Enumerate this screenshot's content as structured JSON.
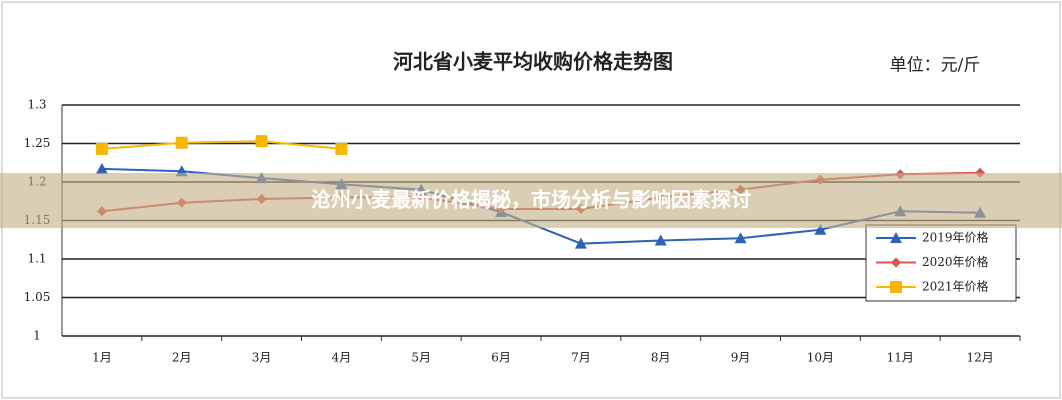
{
  "chart_data": {
    "type": "line",
    "title": "河北省小麦平均收购价格走势图",
    "unit": "单位：元/斤",
    "categories": [
      "1月",
      "2月",
      "3月",
      "4月",
      "5月",
      "6月",
      "7月",
      "8月",
      "9月",
      "10月",
      "11月",
      "12月"
    ],
    "series": [
      {
        "name": "2019年价格",
        "color": "#2e62b8",
        "marker": "triangle",
        "values": [
          1.217,
          1.214,
          1.205,
          1.197,
          1.19,
          1.161,
          1.12,
          1.124,
          1.127,
          1.138,
          1.162,
          1.16
        ]
      },
      {
        "name": "2020年价格",
        "color": "#d9534f",
        "marker": "diamond",
        "values": [
          1.162,
          1.173,
          1.178,
          1.18,
          1.18,
          1.165,
          1.165,
          1.18,
          1.19,
          1.203,
          1.21,
          1.212
        ]
      },
      {
        "name": "2021年价格",
        "color": "#f5b800",
        "marker": "square",
        "values": [
          1.243,
          1.251,
          1.253,
          1.243,
          null,
          null,
          null,
          null,
          null,
          null,
          null,
          null
        ]
      }
    ],
    "ylim": [
      1,
      1.3
    ],
    "yticks": [
      1,
      1.05,
      1.1,
      1.15,
      1.2,
      1.25,
      1.3
    ],
    "grid": true,
    "legend": "lower right"
  },
  "banner": {
    "text": "沧州小麦最新价格揭秘，市场分析与影响因素探讨"
  }
}
